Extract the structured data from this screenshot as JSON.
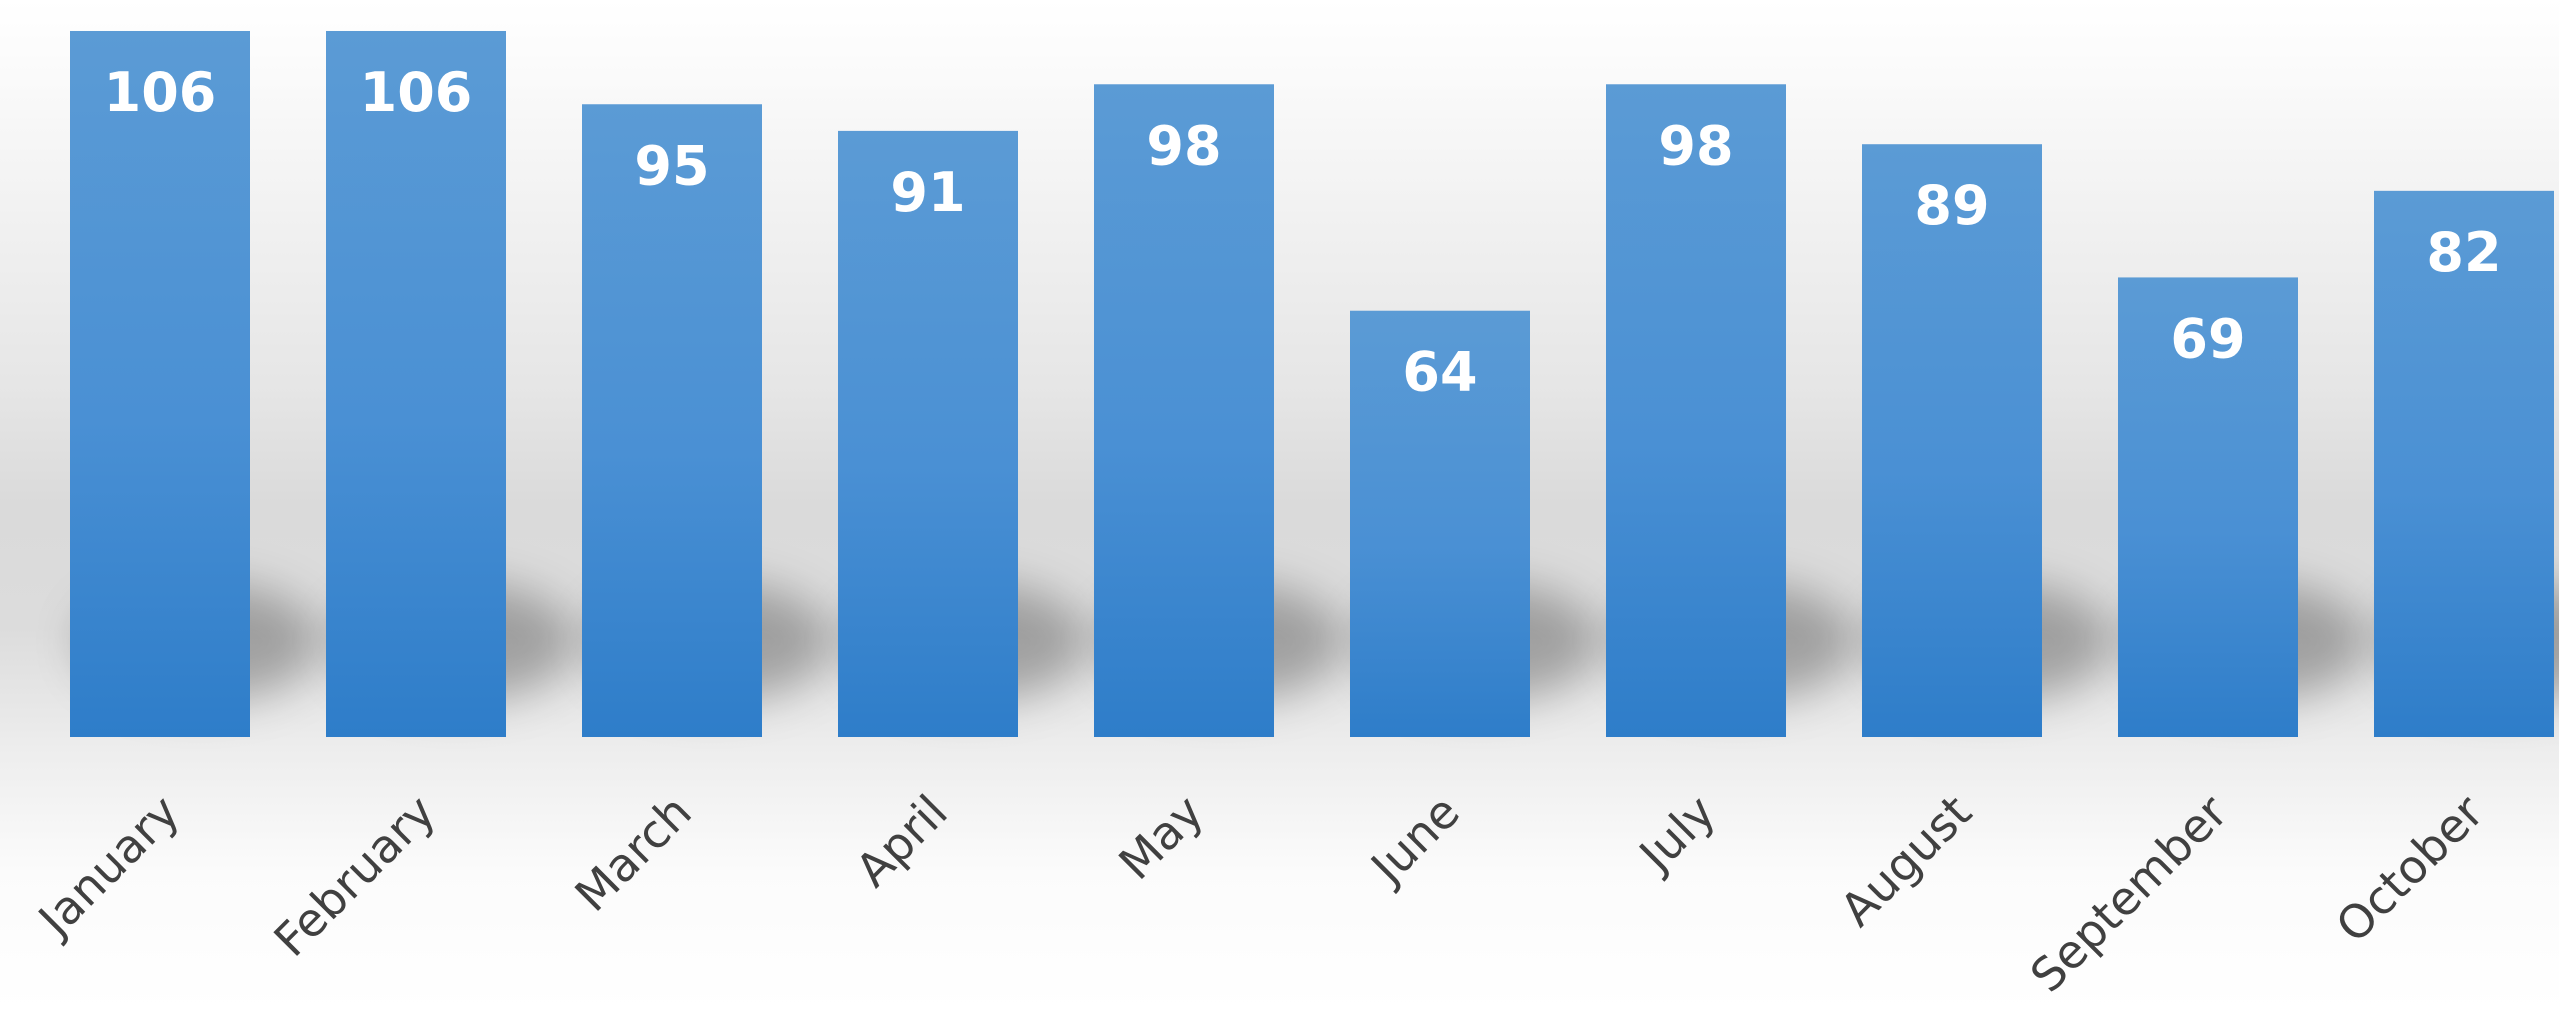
{
  "chart_data": {
    "type": "bar",
    "categories": [
      "January",
      "February",
      "March",
      "April",
      "May",
      "June",
      "July",
      "August",
      "September",
      "October"
    ],
    "values": [
      106,
      106,
      95,
      91,
      98,
      64,
      98,
      89,
      69,
      82
    ],
    "title": "",
    "xlabel": "",
    "ylabel": "",
    "ylim": [
      0,
      108.4
    ],
    "grid": false,
    "legend": "none",
    "data_labels": true,
    "bar_color_top": "#5b9bd5",
    "bar_color_bottom": "#2e7dc9",
    "label_color": "#ffffff",
    "tick_label_color": "#404040"
  }
}
